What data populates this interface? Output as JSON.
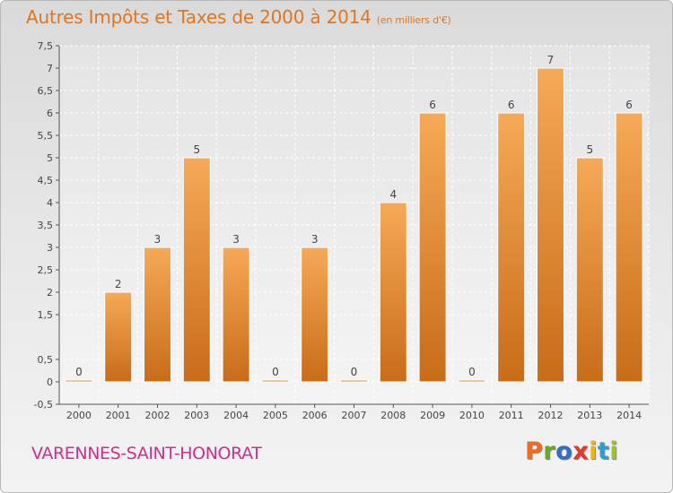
{
  "title": {
    "main": "Autres Impôts et Taxes de 2000 à 2014",
    "unit": "(en milliers d'€)"
  },
  "commune": "VARENNES-SAINT-HONORAT",
  "logo": {
    "letters": [
      "P",
      "r",
      "o",
      "x",
      "i",
      "t",
      "i"
    ],
    "colors": [
      "#ef6c1e",
      "#66aa22",
      "#2f6fc1",
      "#e33b2b",
      "#f0b21c",
      "#2f9fd1",
      "#9bc42a"
    ]
  },
  "colors": {
    "title": "#e2751d",
    "commune": "#cc2f8c",
    "bar_light": "#f6a957",
    "bar_dark": "#c86c18"
  },
  "chart_data": {
    "type": "bar",
    "categories": [
      "2000",
      "2001",
      "2002",
      "2003",
      "2004",
      "2005",
      "2006",
      "2007",
      "2008",
      "2009",
      "2010",
      "2011",
      "2012",
      "2013",
      "2014"
    ],
    "values": [
      0,
      2,
      3,
      5,
      3,
      0,
      3,
      0,
      4,
      6,
      0,
      6,
      7,
      5,
      6
    ],
    "data_labels": [
      "0",
      "2",
      "3",
      "5",
      "3",
      "0",
      "3",
      "0",
      "4",
      "6",
      "0",
      "6",
      "7",
      "5",
      "6"
    ],
    "ylim": [
      -0.5,
      7.5
    ],
    "yticks": [
      -0.5,
      0,
      0.5,
      1.5,
      2,
      2.5,
      3,
      3.5,
      4,
      4.5,
      5,
      5.5,
      6,
      6.5,
      7,
      7.5
    ],
    "ytick_labels": [
      "-0,5",
      "0",
      "0,5",
      "1,5",
      "2",
      "2,5",
      "3",
      "3,5",
      "4",
      "4,5",
      "5",
      "5,5",
      "6",
      "6,5",
      "7",
      "7,5"
    ],
    "grid": true,
    "xlabel": "",
    "ylabel": ""
  }
}
